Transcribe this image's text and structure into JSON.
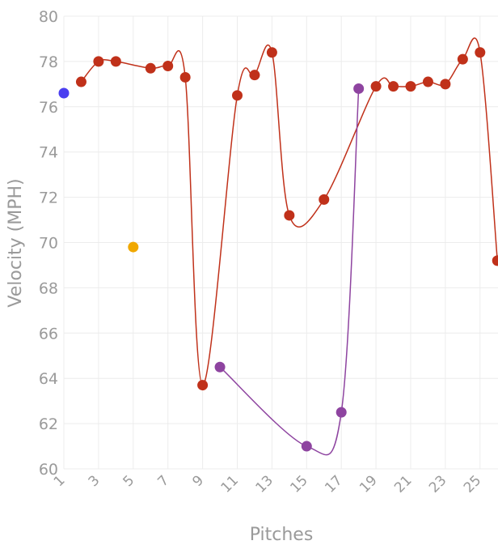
{
  "chart_data": {
    "type": "line",
    "title": "",
    "xlabel": "Pitches",
    "ylabel": "Velocity (MPH)",
    "xlim": [
      1,
      26
    ],
    "ylim": [
      60,
      80
    ],
    "x_ticks": [
      "1",
      "3",
      "5",
      "7",
      "9",
      "11",
      "13",
      "15",
      "17",
      "19",
      "21",
      "23",
      "25"
    ],
    "y_ticks": [
      "60",
      "62",
      "64",
      "66",
      "68",
      "70",
      "72",
      "74",
      "76",
      "78",
      "80"
    ],
    "grid": true,
    "legend": "none",
    "series": [
      {
        "color": "#c0311a",
        "line": true,
        "segments": [
          [
            [
              2,
              77.1
            ],
            [
              3,
              78.0
            ],
            [
              4,
              78.0
            ],
            [
              6,
              77.7
            ],
            [
              7,
              77.8
            ],
            [
              8,
              77.3
            ],
            [
              9,
              63.7
            ],
            [
              11,
              76.5
            ],
            [
              12,
              77.4
            ],
            [
              13,
              78.4
            ],
            [
              14,
              71.2
            ],
            [
              16,
              71.9
            ],
            [
              19,
              76.9
            ],
            [
              20,
              76.9
            ],
            [
              21,
              76.9
            ],
            [
              22,
              77.1
            ],
            [
              23,
              77.0
            ],
            [
              24,
              78.1
            ],
            [
              25,
              78.4
            ],
            [
              26,
              69.2
            ]
          ]
        ]
      },
      {
        "color": "#8e44a0",
        "line": true,
        "segments": [
          [
            [
              10,
              64.5
            ],
            [
              15,
              61.0
            ],
            [
              17,
              62.5
            ],
            [
              18,
              76.8
            ]
          ]
        ]
      },
      {
        "color": "#4a3ef0",
        "line": false,
        "segments": [
          [
            [
              1,
              76.6
            ]
          ]
        ]
      },
      {
        "color": "#f0a800",
        "line": false,
        "segments": [
          [
            [
              5,
              69.8
            ]
          ]
        ]
      }
    ]
  }
}
